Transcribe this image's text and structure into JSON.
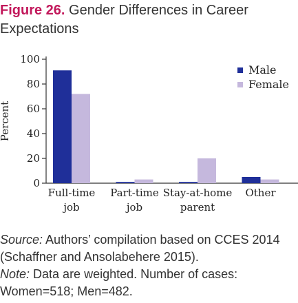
{
  "figure": {
    "label": "Figure 26.",
    "title": "Gender Differences in Career Expectations"
  },
  "chart_data": {
    "type": "bar",
    "ylabel": "Percent",
    "xlabel": "",
    "ylim": [
      0,
      100
    ],
    "yticks": [
      0,
      20,
      40,
      60,
      80,
      100
    ],
    "categories": [
      [
        "Full-time",
        "job"
      ],
      [
        "Part-time",
        "job"
      ],
      [
        "Stay-at-home",
        "parent"
      ],
      [
        "Other"
      ]
    ],
    "series": [
      {
        "name": "Male",
        "color": "#1f2f99",
        "values": [
          91,
          1,
          1,
          5
        ]
      },
      {
        "name": "Female",
        "color": "#c5b8dd",
        "values": [
          72,
          3,
          20,
          3
        ]
      }
    ],
    "legend_position": "top-right",
    "grid": false
  },
  "notes": {
    "source_label": "Source:",
    "source_text": " Authors’ compilation based on CCES 2014 (Schaffner and Ansolabehere 2015).",
    "note_label": "Note:",
    "note_text": " Data are weighted. Number of cases: Women=518; Men=482."
  }
}
